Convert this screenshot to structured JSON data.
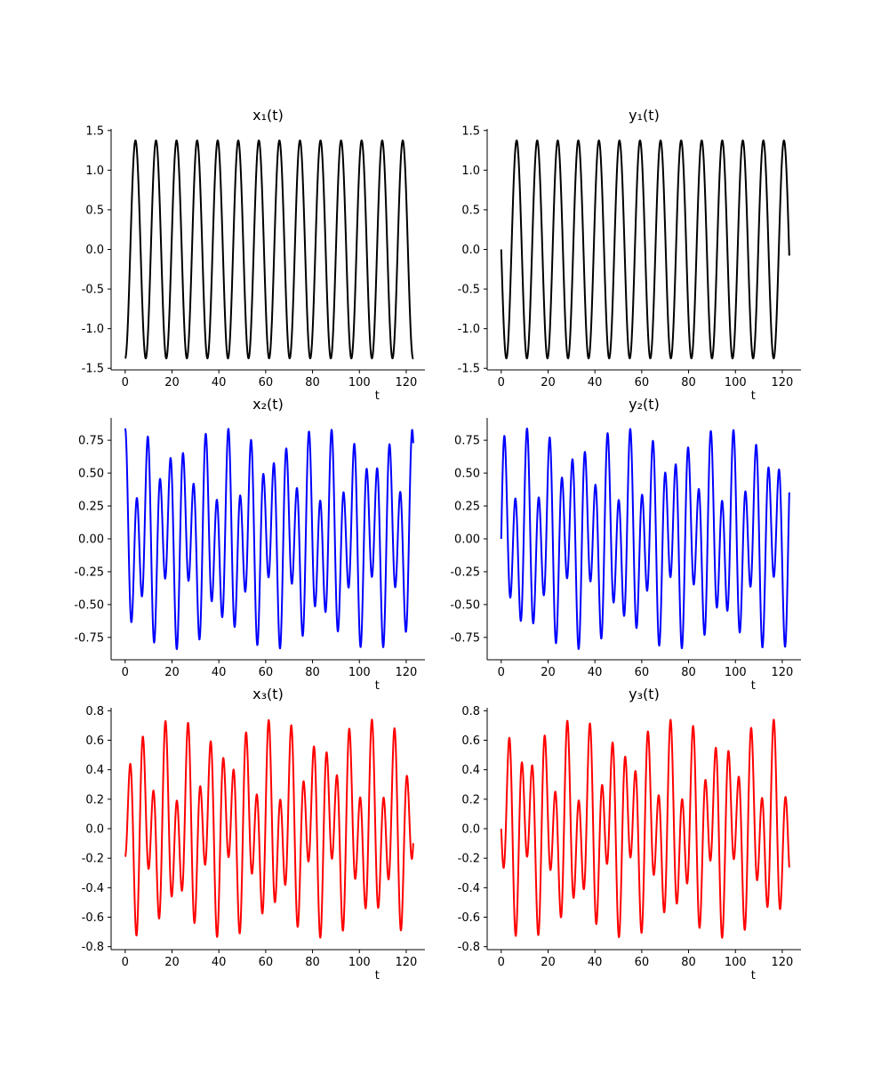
{
  "chart_data": [
    {
      "type": "line",
      "title": "x₁(t)",
      "xlabel": "t",
      "ylabel": "",
      "xlim": [
        -6,
        128
      ],
      "ylim": [
        -1.52,
        1.52
      ],
      "xticks": [
        "0",
        "20",
        "40",
        "60",
        "80",
        "100",
        "120"
      ],
      "yticks": [
        "-1.5",
        "-1.0",
        "-0.5",
        "0.0",
        "0.5",
        "1.0",
        "1.5"
      ],
      "color": "#000000",
      "series": [
        {
          "kind": "sum",
          "t_range": [
            0,
            123
          ],
          "components": [
            {
              "amp": 1.375,
              "period": 8.78,
              "phase_deg": 180,
              "func": "cos"
            }
          ]
        }
      ]
    },
    {
      "type": "line",
      "title": "y₁(t)",
      "xlabel": "t",
      "ylabel": "",
      "xlim": [
        -6,
        128
      ],
      "ylim": [
        -1.52,
        1.52
      ],
      "xticks": [
        "0",
        "20",
        "40",
        "60",
        "80",
        "100",
        "120"
      ],
      "yticks": [
        "-1.5",
        "-1.0",
        "-0.5",
        "0.0",
        "0.5",
        "1.0",
        "1.5"
      ],
      "color": "#000000",
      "series": [
        {
          "kind": "sum",
          "t_range": [
            0,
            123
          ],
          "components": [
            {
              "amp": 1.375,
              "period": 8.78,
              "phase_deg": 180,
              "func": "sin"
            }
          ]
        }
      ]
    },
    {
      "type": "line",
      "title": "x₂(t)",
      "xlabel": "t",
      "ylabel": "",
      "xlim": [
        -6,
        128
      ],
      "ylim": [
        -0.92,
        0.92
      ],
      "xticks": [
        "0",
        "20",
        "40",
        "60",
        "80",
        "100",
        "120"
      ],
      "yticks": [
        "-0.75",
        "-0.50",
        "-0.25",
        "0.00",
        "0.25",
        "0.50",
        "0.75"
      ],
      "color": "#0000ff",
      "series": [
        {
          "kind": "sum",
          "t_range": [
            0,
            123
          ],
          "components": [
            {
              "amp": 0.275,
              "period": 8.78,
              "phase_deg": 0,
              "func": "cos"
            },
            {
              "amp": 0.565,
              "period": 4.9,
              "phase_deg": 0,
              "func": "cos"
            }
          ]
        }
      ]
    },
    {
      "type": "line",
      "title": "y₂(t)",
      "xlabel": "t",
      "ylabel": "",
      "xlim": [
        -6,
        128
      ],
      "ylim": [
        -0.92,
        0.92
      ],
      "xticks": [
        "0",
        "20",
        "40",
        "60",
        "80",
        "100",
        "120"
      ],
      "yticks": [
        "-0.75",
        "-0.50",
        "-0.25",
        "0.00",
        "0.25",
        "0.50",
        "0.75"
      ],
      "color": "#0000ff",
      "series": [
        {
          "kind": "sum",
          "t_range": [
            0,
            123
          ],
          "components": [
            {
              "amp": 0.275,
              "period": 8.78,
              "phase_deg": 0,
              "func": "sin"
            },
            {
              "amp": 0.565,
              "period": 4.9,
              "phase_deg": 0,
              "func": "sin"
            }
          ]
        }
      ]
    },
    {
      "type": "line",
      "title": "x₃(t)",
      "xlabel": "t",
      "ylabel": "",
      "xlim": [
        -6,
        128
      ],
      "ylim": [
        -0.82,
        0.82
      ],
      "xticks": [
        "0",
        "20",
        "40",
        "60",
        "80",
        "100",
        "120"
      ],
      "yticks": [
        "-0.8",
        "-0.6",
        "-0.4",
        "-0.2",
        "0.0",
        "0.2",
        "0.4",
        "0.6",
        "0.8"
      ],
      "color": "#ff0000",
      "series": [
        {
          "kind": "sum",
          "t_range": [
            0,
            123
          ],
          "components": [
            {
              "amp": 0.275,
              "period": 8.78,
              "phase_deg": 0,
              "func": "cos"
            },
            {
              "amp": 0.465,
              "period": 4.9,
              "phase_deg": 180,
              "func": "cos"
            }
          ]
        }
      ]
    },
    {
      "type": "line",
      "title": "y₃(t)",
      "xlabel": "t",
      "ylabel": "",
      "xlim": [
        -6,
        128
      ],
      "ylim": [
        -0.82,
        0.82
      ],
      "xticks": [
        "0",
        "20",
        "40",
        "60",
        "80",
        "100",
        "120"
      ],
      "yticks": [
        "-0.8",
        "-0.6",
        "-0.4",
        "-0.2",
        "0.0",
        "0.2",
        "0.4",
        "0.6",
        "0.8"
      ],
      "color": "#ff0000",
      "series": [
        {
          "kind": "sum",
          "t_range": [
            0,
            123
          ],
          "components": [
            {
              "amp": 0.275,
              "period": 8.78,
              "phase_deg": 0,
              "func": "sin"
            },
            {
              "amp": 0.465,
              "period": 4.9,
              "phase_deg": 180,
              "func": "sin"
            }
          ]
        }
      ]
    }
  ]
}
